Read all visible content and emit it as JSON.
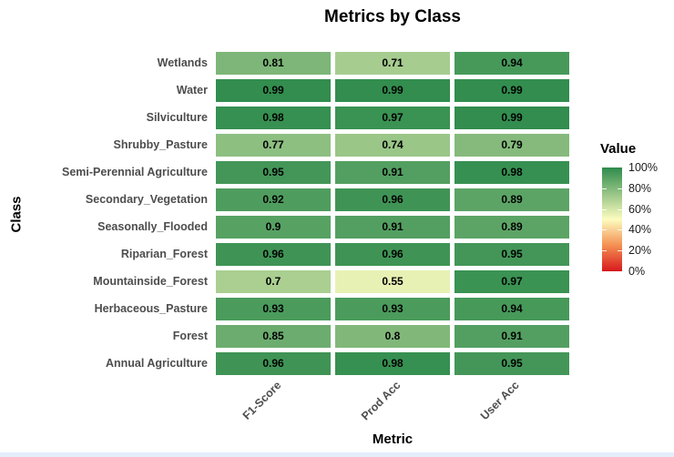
{
  "title": "Metrics by Class",
  "x_axis_title": "Metric",
  "y_axis_title": "Class",
  "legend": {
    "title": "Value",
    "tick_labels": [
      "100%",
      "80%",
      "60%",
      "40%",
      "20%",
      "0%"
    ],
    "tick_values": [
      1.0,
      0.8,
      0.6,
      0.4,
      0.2,
      0.0
    ]
  },
  "chart_data": {
    "type": "heatmap",
    "title": "Metrics by Class",
    "xlabel": "Metric",
    "ylabel": "Class",
    "x_categories": [
      "F1-Score",
      "Prod Acc",
      "User Acc"
    ],
    "y_categories": [
      "Wetlands",
      "Water",
      "Silviculture",
      "Shrubby_Pasture",
      "Semi-Perennial Agriculture",
      "Secondary_Vegetation",
      "Seasonally_Flooded",
      "Riparian_Forest",
      "Mountainside_Forest",
      "Herbaceous_Pasture",
      "Forest",
      "Annual Agriculture"
    ],
    "values": [
      [
        0.81,
        0.71,
        0.94
      ],
      [
        0.99,
        0.99,
        0.99
      ],
      [
        0.98,
        0.97,
        0.99
      ],
      [
        0.77,
        0.74,
        0.79
      ],
      [
        0.95,
        0.91,
        0.98
      ],
      [
        0.92,
        0.96,
        0.89
      ],
      [
        0.9,
        0.91,
        0.89
      ],
      [
        0.96,
        0.96,
        0.95
      ],
      [
        0.7,
        0.55,
        0.97
      ],
      [
        0.93,
        0.93,
        0.94
      ],
      [
        0.85,
        0.8,
        0.91
      ],
      [
        0.96,
        0.98,
        0.95
      ]
    ],
    "color_scale": {
      "name": "RdYlGn",
      "domain": [
        0,
        1
      ],
      "stops": [
        {
          "pos": 0.0,
          "color": "#d7191c"
        },
        {
          "pos": 0.25,
          "color": "#f49053"
        },
        {
          "pos": 0.5,
          "color": "#fdfcbf"
        },
        {
          "pos": 1.0,
          "color": "#2e8b4c"
        }
      ]
    },
    "legend_title": "Value",
    "legend_position": "right",
    "grid": false,
    "cell_text_color": "#000000"
  },
  "colors": {
    "background": "#ffffff",
    "axis_text": "#4d4d4d",
    "title_text": "#000000",
    "bottom_strip": "#e3eefa"
  }
}
